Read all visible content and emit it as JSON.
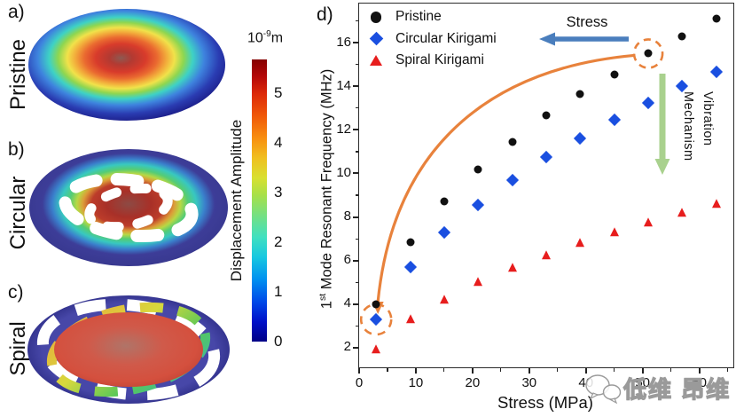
{
  "panels": {
    "a": {
      "letter": "a)",
      "name": "Pristine"
    },
    "b": {
      "letter": "b)",
      "name": "Circular"
    },
    "c": {
      "letter": "c)",
      "name": "Spiral"
    },
    "d": {
      "letter": "d)"
    }
  },
  "colorbar": {
    "title_base": "10",
    "title_exponent": "-9",
    "title_unit": "m",
    "label": "Displacement Amplitude",
    "ticks": [
      5,
      4,
      3,
      2,
      1,
      0
    ],
    "vmax": 5.68,
    "jet_stops_bottom_to_top": [
      [
        0,
        "#000085"
      ],
      [
        0.07,
        "#0010c8"
      ],
      [
        0.14,
        "#0048e8"
      ],
      [
        0.22,
        "#0090f0"
      ],
      [
        0.3,
        "#18c8e0"
      ],
      [
        0.37,
        "#40e0c0"
      ],
      [
        0.44,
        "#70e088"
      ],
      [
        0.52,
        "#a8e048"
      ],
      [
        0.58,
        "#d8e030"
      ],
      [
        0.65,
        "#f0c020"
      ],
      [
        0.72,
        "#f89010"
      ],
      [
        0.8,
        "#f05808"
      ],
      [
        0.88,
        "#dc2808"
      ],
      [
        0.94,
        "#b40808"
      ],
      [
        1,
        "#850000"
      ]
    ]
  },
  "chart_data": {
    "type": "scatter",
    "title": "",
    "xlabel": "Stress (MPa)",
    "ylabel": "1st Mode Resonant Frequency (MHz)",
    "ylabel_parts": {
      "prefix": "1",
      "superscript": "st",
      "rest": " Mode Resonant Frequency (MHz)"
    },
    "xlim": [
      0,
      66
    ],
    "ylim": [
      1.1,
      17.8
    ],
    "x_ticks": [
      0,
      10,
      20,
      30,
      40,
      50,
      60
    ],
    "y_ticks": [
      2,
      4,
      6,
      8,
      10,
      12,
      14,
      16
    ],
    "x_minor_ticks": [
      5,
      15,
      25,
      35,
      45,
      55,
      65
    ],
    "y_minor_ticks": [
      3,
      5,
      7,
      9,
      11,
      13,
      15,
      17
    ],
    "grid": false,
    "legend_position": "upper-left",
    "x": [
      3,
      9,
      15,
      21,
      27,
      33,
      39,
      45,
      51,
      57,
      63
    ],
    "series": [
      {
        "name": "Pristine",
        "marker": "circle",
        "color": "#111111",
        "values": [
          4.0,
          6.85,
          8.7,
          10.2,
          11.45,
          12.65,
          13.65,
          14.55,
          15.5,
          16.3,
          17.1
        ]
      },
      {
        "name": "Circular Kirigami",
        "marker": "diamond",
        "color": "#1a4fe0",
        "values": [
          3.3,
          5.7,
          7.3,
          8.55,
          9.7,
          10.75,
          11.6,
          12.45,
          13.25,
          14.0,
          14.65
        ]
      },
      {
        "name": "Spiral Kirigami",
        "marker": "triangle",
        "color": "#e71d1d",
        "values": [
          1.9,
          3.3,
          4.2,
          5.0,
          5.65,
          6.25,
          6.8,
          7.3,
          7.75,
          8.2,
          8.6
        ]
      }
    ],
    "annotations": {
      "stress_label": "Stress",
      "vibration_label": [
        "Vibration",
        "Mechanism"
      ],
      "highlight_points": [
        {
          "series": "Pristine",
          "x": 51,
          "y": 15.5
        },
        {
          "series": "Circular Kirigami",
          "x": 3,
          "y": 3.3
        }
      ],
      "colors": {
        "highlight_orange": "#e8823c",
        "stress_arrow_blue": "#4a7ebd",
        "vibration_arrow_green": "#a9d18e"
      }
    }
  },
  "watermark": {
    "text": "低维 昂维",
    "icon": "wechat-bubbles-icon"
  }
}
